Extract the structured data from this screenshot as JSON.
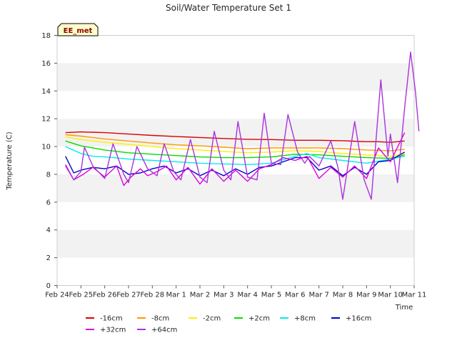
{
  "chart_data": {
    "type": "line",
    "title": "Soil/Water Temperature Set 1",
    "xlabel": "Time",
    "ylabel": "Temperature (C)",
    "badge": "EE_met",
    "ylim": [
      0,
      18
    ],
    "yticks": [
      0,
      2,
      4,
      6,
      8,
      10,
      12,
      14,
      16,
      18
    ],
    "xlim": [
      0,
      15
    ],
    "xtick_labels": [
      "Feb 24",
      "Feb 25",
      "Feb 26",
      "Feb 27",
      "Feb 28",
      "Mar 1",
      "Mar 2",
      "Mar 3",
      "Mar 4",
      "Mar 5",
      "Mar 6",
      "Mar 7",
      "Mar 8",
      "Mar 9",
      "Mar 10",
      "Mar 11"
    ],
    "grid": "horizontal bands",
    "legend_position": "bottom",
    "x_unit": "days since Feb 24",
    "series": [
      {
        "name": "-16cm",
        "color": "#dd0000",
        "points": [
          [
            0.35,
            11.0
          ],
          [
            1,
            11.05
          ],
          [
            2,
            11.0
          ],
          [
            3,
            10.9
          ],
          [
            4,
            10.8
          ],
          [
            5,
            10.72
          ],
          [
            6,
            10.65
          ],
          [
            7,
            10.58
          ],
          [
            8,
            10.52
          ],
          [
            9,
            10.5
          ],
          [
            10,
            10.45
          ],
          [
            11,
            10.45
          ],
          [
            12,
            10.42
          ],
          [
            13,
            10.35
          ],
          [
            13.5,
            10.35
          ],
          [
            14,
            10.3
          ],
          [
            14.6,
            10.4
          ]
        ]
      },
      {
        "name": "-8cm",
        "color": "#ff9900",
        "points": [
          [
            0.35,
            10.85
          ],
          [
            1,
            10.75
          ],
          [
            2,
            10.55
          ],
          [
            3,
            10.4
          ],
          [
            4,
            10.25
          ],
          [
            5,
            10.12
          ],
          [
            6,
            10.05
          ],
          [
            7,
            9.95
          ],
          [
            8,
            9.85
          ],
          [
            9,
            9.9
          ],
          [
            10,
            9.9
          ],
          [
            11,
            9.9
          ],
          [
            12,
            9.85
          ],
          [
            13,
            9.75
          ],
          [
            14,
            9.7
          ],
          [
            14.6,
            9.8
          ]
        ]
      },
      {
        "name": "-2cm",
        "color": "#ffee00",
        "points": [
          [
            0.35,
            10.7
          ],
          [
            1,
            10.5
          ],
          [
            2,
            10.3
          ],
          [
            3,
            10.15
          ],
          [
            4,
            10.0
          ],
          [
            5,
            9.85
          ],
          [
            6,
            9.75
          ],
          [
            7,
            9.65
          ],
          [
            8,
            9.55
          ],
          [
            9,
            9.6
          ],
          [
            10,
            9.7
          ],
          [
            11,
            9.65
          ],
          [
            12,
            9.5
          ],
          [
            13,
            9.4
          ],
          [
            14,
            9.3
          ],
          [
            14.6,
            9.5
          ]
        ]
      },
      {
        "name": "+2cm",
        "color": "#00dd00",
        "points": [
          [
            0.35,
            10.4
          ],
          [
            1,
            10.05
          ],
          [
            2,
            9.75
          ],
          [
            3,
            9.55
          ],
          [
            4,
            9.45
          ],
          [
            5,
            9.35
          ],
          [
            6,
            9.25
          ],
          [
            7,
            9.2
          ],
          [
            8,
            9.2
          ],
          [
            9,
            9.25
          ],
          [
            10,
            9.45
          ],
          [
            11,
            9.4
          ],
          [
            12,
            9.3
          ],
          [
            13,
            9.2
          ],
          [
            14,
            9.15
          ],
          [
            14.6,
            9.4
          ]
        ]
      },
      {
        "name": "+8cm",
        "color": "#00eeee",
        "points": [
          [
            0.35,
            10.0
          ],
          [
            1,
            9.5
          ],
          [
            1.5,
            9.3
          ],
          [
            2,
            9.25
          ],
          [
            3,
            9.1
          ],
          [
            4,
            9.0
          ],
          [
            5,
            8.9
          ],
          [
            6,
            8.8
          ],
          [
            7,
            8.75
          ],
          [
            8,
            8.7
          ],
          [
            9,
            8.8
          ],
          [
            10,
            9.3
          ],
          [
            10.5,
            9.5
          ],
          [
            11,
            9.2
          ],
          [
            12,
            9.0
          ],
          [
            13,
            8.8
          ],
          [
            14,
            9.1
          ],
          [
            14.6,
            9.3
          ]
        ]
      },
      {
        "name": "+16cm",
        "color": "#0000cc",
        "points": [
          [
            0.35,
            9.3
          ],
          [
            0.7,
            8.1
          ],
          [
            1,
            8.3
          ],
          [
            1.5,
            8.5
          ],
          [
            2,
            8.4
          ],
          [
            2.5,
            8.6
          ],
          [
            3,
            8.0
          ],
          [
            3.5,
            8.1
          ],
          [
            4,
            8.4
          ],
          [
            4.5,
            8.6
          ],
          [
            5,
            8.1
          ],
          [
            5.5,
            8.4
          ],
          [
            6,
            7.9
          ],
          [
            6.5,
            8.3
          ],
          [
            7,
            7.9
          ],
          [
            7.5,
            8.4
          ],
          [
            8,
            8.0
          ],
          [
            8.5,
            8.5
          ],
          [
            9,
            8.6
          ],
          [
            9.5,
            8.9
          ],
          [
            10,
            9.2
          ],
          [
            10.5,
            9.2
          ],
          [
            11,
            8.3
          ],
          [
            11.5,
            8.6
          ],
          [
            12,
            7.9
          ],
          [
            12.5,
            8.5
          ],
          [
            13,
            8.0
          ],
          [
            13.5,
            8.9
          ],
          [
            14,
            9.0
          ],
          [
            14.6,
            9.6
          ]
        ]
      },
      {
        "name": "+32cm",
        "color": "#dd00dd",
        "points": [
          [
            0.35,
            8.7
          ],
          [
            0.7,
            7.6
          ],
          [
            1.1,
            8.0
          ],
          [
            1.5,
            8.5
          ],
          [
            2,
            7.8
          ],
          [
            2.5,
            8.6
          ],
          [
            2.8,
            7.2
          ],
          [
            3.1,
            7.8
          ],
          [
            3.5,
            8.4
          ],
          [
            3.8,
            7.9
          ],
          [
            4.2,
            8.2
          ],
          [
            4.6,
            8.6
          ],
          [
            5,
            7.6
          ],
          [
            5.5,
            8.5
          ],
          [
            6,
            7.3
          ],
          [
            6.5,
            8.4
          ],
          [
            7,
            7.5
          ],
          [
            7.5,
            8.3
          ],
          [
            8,
            7.5
          ],
          [
            8.5,
            8.4
          ],
          [
            9,
            8.7
          ],
          [
            9.5,
            9.2
          ],
          [
            10,
            9.0
          ],
          [
            10.5,
            9.3
          ],
          [
            11,
            7.7
          ],
          [
            11.5,
            8.5
          ],
          [
            12,
            7.8
          ],
          [
            12.5,
            8.6
          ],
          [
            13,
            7.7
          ],
          [
            13.5,
            9.9
          ],
          [
            14,
            8.9
          ],
          [
            14.6,
            11.0
          ]
        ]
      },
      {
        "name": "+64cm",
        "color": "#aa33dd",
        "points": [
          [
            0.35,
            8.6
          ],
          [
            0.7,
            7.6
          ],
          [
            1.0,
            8.2
          ],
          [
            1.15,
            9.95
          ],
          [
            1.5,
            8.6
          ],
          [
            2,
            7.7
          ],
          [
            2.35,
            10.2
          ],
          [
            2.8,
            8.0
          ],
          [
            3.0,
            7.4
          ],
          [
            3.35,
            10.0
          ],
          [
            3.8,
            8.4
          ],
          [
            4.2,
            7.9
          ],
          [
            4.5,
            10.2
          ],
          [
            4.9,
            8.2
          ],
          [
            5.2,
            7.6
          ],
          [
            5.6,
            10.5
          ],
          [
            6.0,
            7.8
          ],
          [
            6.3,
            7.4
          ],
          [
            6.6,
            11.1
          ],
          [
            7.0,
            8.3
          ],
          [
            7.3,
            7.6
          ],
          [
            7.6,
            11.8
          ],
          [
            8.0,
            7.8
          ],
          [
            8.4,
            7.6
          ],
          [
            8.7,
            12.4
          ],
          [
            9.0,
            8.8
          ],
          [
            9.4,
            8.7
          ],
          [
            9.7,
            12.3
          ],
          [
            10.1,
            9.6
          ],
          [
            10.4,
            8.8
          ],
          [
            10.6,
            9.3
          ],
          [
            11.0,
            8.6
          ],
          [
            11.5,
            10.4
          ],
          [
            11.8,
            8.5
          ],
          [
            12.0,
            6.2
          ],
          [
            12.5,
            11.8
          ],
          [
            12.9,
            7.6
          ],
          [
            13.2,
            6.2
          ],
          [
            13.6,
            14.8
          ],
          [
            13.9,
            9.3
          ],
          [
            14.0,
            10.9
          ],
          [
            14.3,
            7.4
          ],
          [
            14.6,
            12.8
          ],
          [
            14.85,
            16.8
          ],
          [
            15.05,
            14.0
          ],
          [
            15.2,
            11.1
          ]
        ]
      }
    ]
  }
}
